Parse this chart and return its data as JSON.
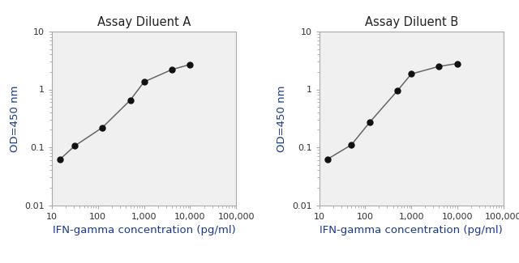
{
  "title_a": "Assay Diluent A",
  "title_b": "Assay Diluent B",
  "xlabel": "IFN-gamma concentration (pg/ml)",
  "ylabel": "OD=450 nm",
  "x_a": [
    15,
    31,
    125,
    500,
    1000,
    4000,
    10000
  ],
  "y_a": [
    0.062,
    0.105,
    0.22,
    0.65,
    1.35,
    2.2,
    2.7
  ],
  "x_b": [
    15,
    50,
    125,
    500,
    1000,
    4000,
    10000
  ],
  "y_b": [
    0.062,
    0.11,
    0.27,
    0.95,
    1.85,
    2.5,
    2.8
  ],
  "xlim": [
    10,
    100000
  ],
  "ylim": [
    0.01,
    10
  ],
  "line_color": "#666666",
  "marker_color": "#111111",
  "title_color": "#222222",
  "label_color": "#1a3a8a",
  "tick_label_color": "#333333",
  "spine_color": "#aaaaaa",
  "bg_color": "#ffffff",
  "plot_bg_color": "#f0f0f0",
  "title_fontsize": 10.5,
  "label_fontsize": 9.5,
  "tick_fontsize": 8
}
